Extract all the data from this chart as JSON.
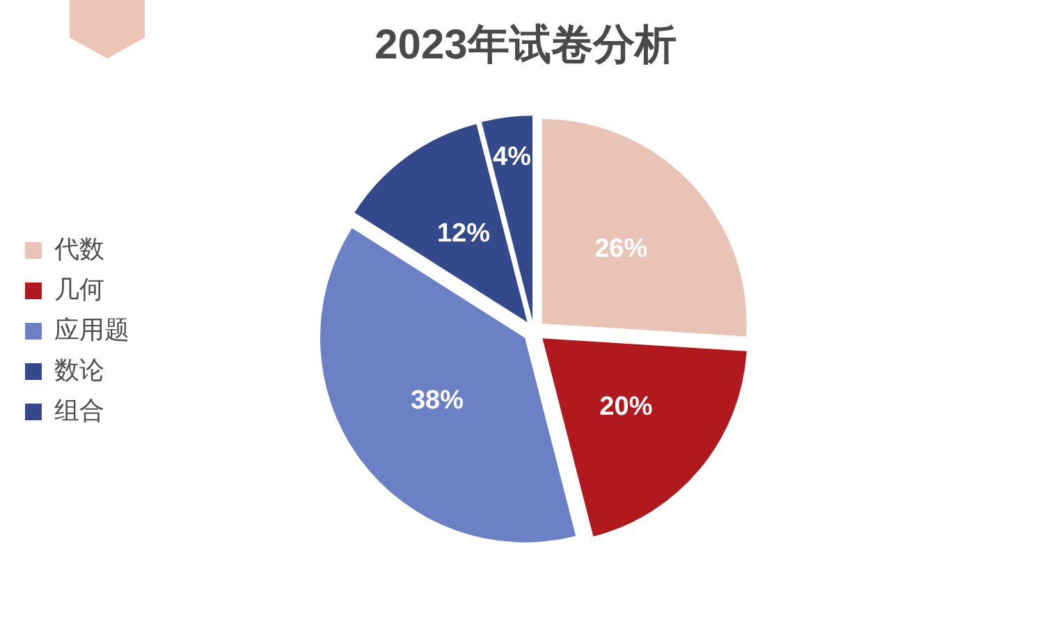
{
  "chart_data": {
    "type": "pie",
    "title": "2023年试卷分析",
    "categories": [
      "代数",
      "几何",
      "应用题",
      "数论",
      "组合"
    ],
    "values": [
      26,
      20,
      38,
      12,
      4
    ],
    "value_labels": [
      "26%",
      "20%",
      "38%",
      "12%",
      "4%"
    ],
    "colors": [
      "#e9c3b5",
      "#b01a1e",
      "#6b80c5",
      "#34488c",
      "#34488c"
    ],
    "legend": "left"
  }
}
